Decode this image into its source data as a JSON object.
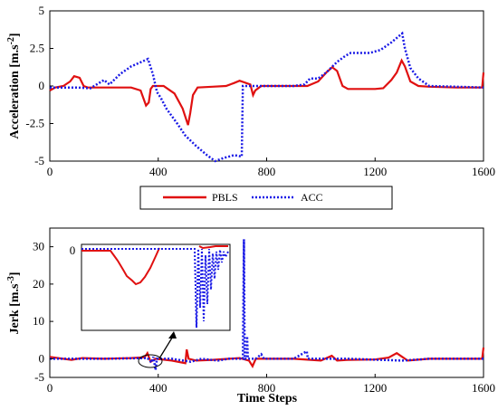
{
  "chart_data": [
    {
      "type": "line",
      "ylabel": "Acceleration [m.s",
      "ylabel_exp": "-2",
      "ylabel_close": "]",
      "xlim": [
        0,
        1600
      ],
      "ylim": [
        -5,
        5
      ],
      "xticks": [
        "0",
        "400",
        "800",
        "1200",
        "1600"
      ],
      "yticks": [
        "5",
        "2.5",
        "0",
        "-2.5",
        "-5"
      ],
      "series": [
        {
          "name": "PBLS",
          "color": "#e01010",
          "style": "solid",
          "points": [
            [
              0,
              -0.3
            ],
            [
              20,
              -0.1
            ],
            [
              50,
              0.0
            ],
            [
              75,
              0.3
            ],
            [
              90,
              0.65
            ],
            [
              110,
              0.55
            ],
            [
              125,
              0.0
            ],
            [
              140,
              -0.1
            ],
            [
              200,
              -0.1
            ],
            [
              300,
              -0.1
            ],
            [
              335,
              -0.3
            ],
            [
              355,
              -1.3
            ],
            [
              365,
              -1.1
            ],
            [
              372,
              -0.2
            ],
            [
              380,
              0.0
            ],
            [
              420,
              0.0
            ],
            [
              460,
              -0.5
            ],
            [
              490,
              -1.5
            ],
            [
              510,
              -2.6
            ],
            [
              518,
              -1.8
            ],
            [
              528,
              -0.6
            ],
            [
              545,
              -0.1
            ],
            [
              600,
              -0.05
            ],
            [
              650,
              0.0
            ],
            [
              680,
              0.2
            ],
            [
              700,
              0.35
            ],
            [
              740,
              0.1
            ],
            [
              750,
              -0.6
            ],
            [
              758,
              -0.3
            ],
            [
              780,
              0.0
            ],
            [
              850,
              0.0
            ],
            [
              950,
              0.0
            ],
            [
              990,
              0.3
            ],
            [
              1020,
              0.9
            ],
            [
              1042,
              1.25
            ],
            [
              1060,
              1.0
            ],
            [
              1080,
              0.0
            ],
            [
              1100,
              -0.2
            ],
            [
              1200,
              -0.2
            ],
            [
              1230,
              -0.15
            ],
            [
              1260,
              0.4
            ],
            [
              1280,
              0.9
            ],
            [
              1298,
              1.7
            ],
            [
              1310,
              1.3
            ],
            [
              1330,
              0.3
            ],
            [
              1360,
              0.0
            ],
            [
              1400,
              -0.05
            ],
            [
              1500,
              -0.1
            ],
            [
              1595,
              -0.1
            ],
            [
              1600,
              0.9
            ]
          ]
        },
        {
          "name": "ACC",
          "color": "#1a1ae6",
          "style": "dotted",
          "points": [
            [
              0,
              -0.1
            ],
            [
              50,
              -0.1
            ],
            [
              100,
              -0.1
            ],
            [
              150,
              -0.15
            ],
            [
              200,
              0.4
            ],
            [
              220,
              0.1
            ],
            [
              260,
              0.8
            ],
            [
              300,
              1.3
            ],
            [
              350,
              1.7
            ],
            [
              362,
              1.8
            ],
            [
              380,
              0.8
            ],
            [
              395,
              -0.4
            ],
            [
              410,
              -0.8
            ],
            [
              430,
              -1.5
            ],
            [
              470,
              -2.5
            ],
            [
              500,
              -3.3
            ],
            [
              540,
              -4.0
            ],
            [
              580,
              -4.6
            ],
            [
              610,
              -5.0
            ],
            [
              640,
              -4.8
            ],
            [
              680,
              -4.6
            ],
            [
              708,
              -4.7
            ],
            [
              712,
              0.0
            ],
            [
              730,
              0.0
            ],
            [
              760,
              0.0
            ],
            [
              800,
              0.0
            ],
            [
              850,
              0.0
            ],
            [
              900,
              0.0
            ],
            [
              940,
              0.1
            ],
            [
              960,
              0.5
            ],
            [
              990,
              0.5
            ],
            [
              1020,
              0.9
            ],
            [
              1060,
              1.6
            ],
            [
              1090,
              2.0
            ],
            [
              1110,
              2.2
            ],
            [
              1180,
              2.2
            ],
            [
              1220,
              2.4
            ],
            [
              1260,
              2.9
            ],
            [
              1300,
              3.5
            ],
            [
              1310,
              2.5
            ],
            [
              1330,
              1.2
            ],
            [
              1360,
              0.5
            ],
            [
              1400,
              0.0
            ],
            [
              1500,
              -0.05
            ],
            [
              1600,
              -0.1
            ]
          ]
        }
      ]
    },
    {
      "type": "line",
      "ylabel": "Jerk [m.s",
      "ylabel_exp": "-3",
      "ylabel_close": "]",
      "xlabel": "Time Steps",
      "xlim": [
        0,
        1600
      ],
      "ylim": [
        -5,
        35
      ],
      "xticks": [
        "0",
        "400",
        "800",
        "1200",
        "1600"
      ],
      "yticks": [
        "30",
        "20",
        "10",
        "0",
        "-5"
      ],
      "inset_tick": "0",
      "series": [
        {
          "name": "PBLS",
          "color": "#e01010",
          "style": "solid",
          "points": [
            [
              0,
              0.5
            ],
            [
              30,
              0.2
            ],
            [
              80,
              -0.3
            ],
            [
              120,
              0.2
            ],
            [
              200,
              0.0
            ],
            [
              300,
              0.2
            ],
            [
              350,
              0.4
            ],
            [
              360,
              1.5
            ],
            [
              372,
              -0.8
            ],
            [
              390,
              0.0
            ],
            [
              450,
              -0.5
            ],
            [
              500,
              -1.2
            ],
            [
              505,
              2.5
            ],
            [
              512,
              0.0
            ],
            [
              540,
              -0.5
            ],
            [
              600,
              -0.3
            ],
            [
              700,
              0.2
            ],
            [
              735,
              -0.5
            ],
            [
              748,
              -2.0
            ],
            [
              760,
              0.0
            ],
            [
              800,
              0.0
            ],
            [
              900,
              0.0
            ],
            [
              1000,
              -0.5
            ],
            [
              1040,
              0.8
            ],
            [
              1060,
              -0.5
            ],
            [
              1100,
              -0.3
            ],
            [
              1200,
              -0.2
            ],
            [
              1250,
              0.3
            ],
            [
              1280,
              1.5
            ],
            [
              1300,
              0.5
            ],
            [
              1320,
              -0.5
            ],
            [
              1400,
              0.0
            ],
            [
              1500,
              0.0
            ],
            [
              1595,
              0.0
            ],
            [
              1600,
              3.0
            ]
          ]
        },
        {
          "name": "ACC",
          "color": "#1a1ae6",
          "style": "dotted",
          "points": [
            [
              0,
              0.0
            ],
            [
              200,
              0.0
            ],
            [
              360,
              0.2
            ],
            [
              375,
              -1.0
            ],
            [
              382,
              0.5
            ],
            [
              390,
              -3.0
            ],
            [
              395,
              0.0
            ],
            [
              450,
              0.0
            ],
            [
              520,
              -0.8
            ],
            [
              560,
              0.0
            ],
            [
              620,
              -0.5
            ],
            [
              660,
              0.0
            ],
            [
              700,
              0.0
            ],
            [
              712,
              0.0
            ],
            [
              716,
              32.0
            ],
            [
              719,
              0.0
            ],
            [
              726,
              0.0
            ],
            [
              728,
              6.0
            ],
            [
              731,
              0.0
            ],
            [
              760,
              0.0
            ],
            [
              780,
              1.2
            ],
            [
              790,
              0.0
            ],
            [
              900,
              0.0
            ],
            [
              948,
              2.0
            ],
            [
              952,
              0.0
            ],
            [
              1100,
              0.0
            ],
            [
              1300,
              -0.5
            ],
            [
              1400,
              0.0
            ],
            [
              1600,
              0.0
            ]
          ]
        }
      ]
    }
  ],
  "legend": {
    "items": [
      {
        "label": "PBLS",
        "color": "#e01010",
        "style": "solid"
      },
      {
        "label": "ACC",
        "color": "#1a1ae6",
        "style": "dotted"
      }
    ]
  }
}
